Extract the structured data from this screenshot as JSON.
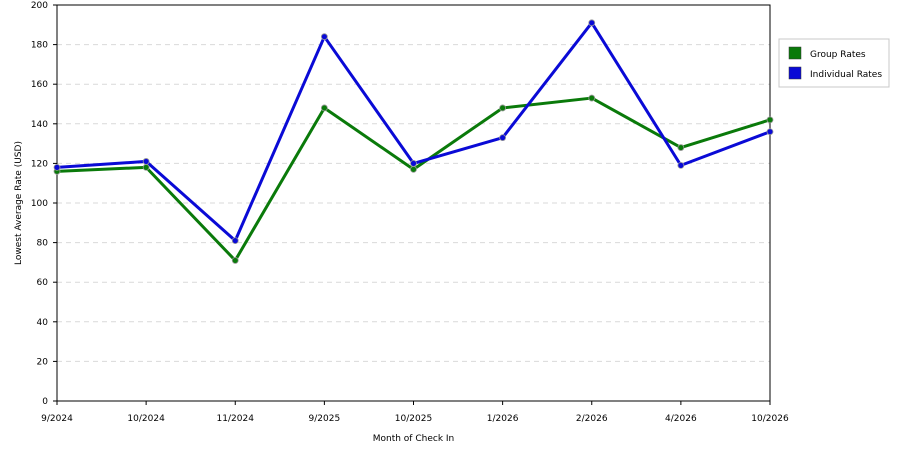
{
  "chart_data": {
    "type": "line",
    "categories": [
      "9/2024",
      "10/2024",
      "11/2024",
      "9/2025",
      "10/2025",
      "1/2026",
      "2/2026",
      "4/2026",
      "10/2026"
    ],
    "series": [
      {
        "name": "Group Rates",
        "color": "#0a7a0a",
        "values": [
          116,
          118,
          71,
          148,
          117,
          148,
          153,
          128,
          142
        ]
      },
      {
        "name": "Individual Rates",
        "color": "#0a0ad6",
        "values": [
          118,
          121,
          81,
          184,
          120,
          133,
          191,
          119,
          136
        ]
      }
    ],
    "xlabel": "Month of Check In",
    "ylabel": "Lowest Average Rate (USD)",
    "ylim": [
      0,
      200
    ],
    "yticks": [
      0,
      20,
      40,
      60,
      80,
      100,
      120,
      140,
      160,
      180,
      200
    ],
    "grid": true,
    "legend_position": "top-right"
  }
}
